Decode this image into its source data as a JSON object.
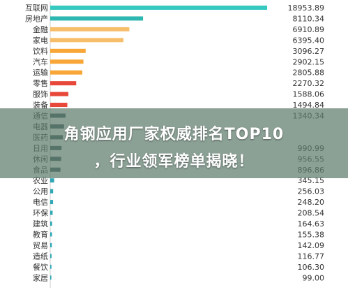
{
  "banner": {
    "line1": "角钢应用厂家权威排名TOP10",
    "line2": "，行业领军榜单揭晓！"
  },
  "colors": {
    "top": "#35c9c0",
    "orange": "#f7a637",
    "light_orange": "#f7be6a",
    "red": "#e8483a",
    "dark": "#3c5a5a",
    "teal": "#2fa8b5",
    "axis": "#cccccc"
  },
  "chart_data": {
    "type": "bar",
    "orientation": "horizontal",
    "categories": [
      "互联网",
      "房地产",
      "金融",
      "家电",
      "饮料",
      "汽车",
      "运输",
      "零售",
      "服饰",
      "装备",
      "通信",
      "电器",
      "医药",
      "日用",
      "休闲",
      "食品",
      "农业",
      "公用",
      "电信",
      "环保",
      "建筑",
      "教育",
      "贸易",
      "造纸",
      "餐饮",
      "家居"
    ],
    "values": [
      18953.89,
      8110.34,
      6910.89,
      6395.4,
      3096.27,
      2902.15,
      2805.88,
      2270.32,
      1588.06,
      1494.84,
      1340.34,
      1210.0,
      1100.0,
      990.99,
      956.55,
      896.86,
      345.15,
      256.03,
      248.2,
      208.54,
      164.63,
      155.38,
      142.09,
      116.77,
      106.3,
      99.0
    ],
    "value_labels": [
      "18953.89",
      "8110.34",
      "6910.89",
      "6395.40",
      "3096.27",
      "2902.15",
      "2805.88",
      "2270.32",
      "1588.06",
      "1494.84",
      "1340.34",
      "",
      "",
      "990.99",
      "956.55",
      "896.86",
      "345.15",
      "256.03",
      "248.20",
      "208.54",
      "164.63",
      "155.38",
      "142.09",
      "116.77",
      "106.30",
      "99.00"
    ],
    "bar_colors": [
      "#35c9c0",
      "#2eb6b0",
      "#f7be6a",
      "#f7be6a",
      "#f7a637",
      "#f7a637",
      "#f7a637",
      "#e8483a",
      "#e8483a",
      "#e8483a",
      "#3c5a5a",
      "#3c5a5a",
      "#3c5a5a",
      "#3c5a5a",
      "#3c5a5a",
      "#3c5a5a",
      "#2fa8b5",
      "#2fa8b5",
      "#2fa8b5",
      "#2fa8b5",
      "#2fa8b5",
      "#2fa8b5",
      "#2fa8b5",
      "#2fa8b5",
      "#2fa8b5",
      "#2fa8b5"
    ],
    "xlim": [
      0,
      19500
    ],
    "legend": "none",
    "grid": false
  }
}
